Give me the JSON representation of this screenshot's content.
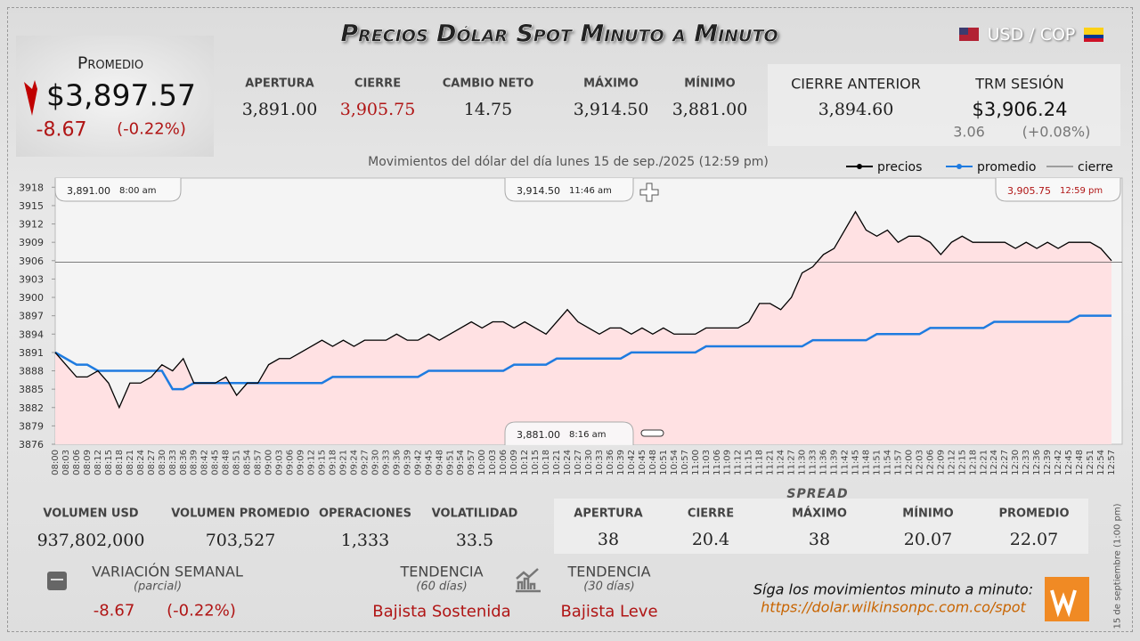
{
  "header": {
    "title": "Precios Dólar Spot Minuto a Minuto",
    "pair": "USD / COP"
  },
  "promedio": {
    "label": "Promedio",
    "value": "$3,897.57",
    "change": "-8.67",
    "pct": "(-0.22%)"
  },
  "stats": [
    {
      "label": "APERTURA",
      "value": "3,891.00"
    },
    {
      "label": "CIERRE",
      "value": "3,905.75"
    },
    {
      "label": "CAMBIO NETO",
      "value": "14.75"
    },
    {
      "label": "MÁXIMO",
      "value": "3,914.50"
    },
    {
      "label": "MÍNIMO",
      "value": "3,881.00"
    },
    {
      "label": "CIERRE ANTERIOR",
      "value": "3,894.60"
    },
    {
      "label": "TRM SESIÓN",
      "value": "$3,906.24",
      "change": "3.06",
      "pct": "(+0.08%)"
    }
  ],
  "chart_data": {
    "type": "line",
    "subtitle": "Movimientos del dólar del día lunes 15 de sep./2025 (12:59 pm)",
    "categories": [
      "08:00",
      "08:03",
      "08:06",
      "08:09",
      "08:12",
      "08:15",
      "08:18",
      "08:21",
      "08:24",
      "08:27",
      "08:30",
      "08:33",
      "08:36",
      "08:39",
      "08:42",
      "08:45",
      "08:48",
      "08:51",
      "08:54",
      "08:57",
      "09:00",
      "09:03",
      "09:06",
      "09:09",
      "09:12",
      "09:15",
      "09:18",
      "09:21",
      "09:24",
      "09:27",
      "09:30",
      "09:33",
      "09:36",
      "09:39",
      "09:42",
      "09:45",
      "09:48",
      "09:51",
      "09:54",
      "09:57",
      "10:00",
      "10:03",
      "10:06",
      "10:09",
      "10:12",
      "10:15",
      "10:18",
      "10:21",
      "10:24",
      "10:27",
      "10:30",
      "10:33",
      "10:36",
      "10:39",
      "10:42",
      "10:45",
      "10:48",
      "10:51",
      "10:54",
      "10:57",
      "11:00",
      "11:03",
      "11:06",
      "11:09",
      "11:12",
      "11:15",
      "11:18",
      "11:21",
      "11:24",
      "11:27",
      "11:30",
      "11:33",
      "11:36",
      "11:39",
      "11:42",
      "11:45",
      "11:48",
      "11:51",
      "11:54",
      "11:57",
      "12:00",
      "12:03",
      "12:06",
      "12:09",
      "12:12",
      "12:15",
      "12:18",
      "12:21",
      "12:24",
      "12:27",
      "12:30",
      "12:33",
      "12:36",
      "12:39",
      "12:42",
      "12:45",
      "12:48",
      "12:51",
      "12:54",
      "12:57"
    ],
    "series": [
      {
        "name": "precios",
        "color": "#000000",
        "values": [
          3891,
          3889,
          3887,
          3887,
          3888,
          3886,
          3882,
          3886,
          3886,
          3887,
          3889,
          3888,
          3890,
          3886,
          3886,
          3886,
          3887,
          3884,
          3886,
          3886,
          3889,
          3890,
          3890,
          3891,
          3892,
          3893,
          3892,
          3893,
          3892,
          3893,
          3893,
          3893,
          3894,
          3893,
          3893,
          3894,
          3893,
          3894,
          3895,
          3896,
          3895,
          3896,
          3896,
          3895,
          3896,
          3895,
          3894,
          3896,
          3898,
          3896,
          3895,
          3894,
          3895,
          3895,
          3894,
          3895,
          3894,
          3895,
          3894,
          3894,
          3894,
          3895,
          3895,
          3895,
          3895,
          3896,
          3899,
          3899,
          3898,
          3900,
          3904,
          3905,
          3907,
          3908,
          3911,
          3914,
          3911,
          3910,
          3911,
          3909,
          3910,
          3910,
          3909,
          3907,
          3909,
          3910,
          3909,
          3909,
          3909,
          3909,
          3908,
          3909,
          3908,
          3909,
          3908,
          3909,
          3909,
          3909,
          3908,
          3906
        ]
      },
      {
        "name": "promedio",
        "color": "#1e7be0",
        "values": [
          3891,
          3890,
          3889,
          3889,
          3888,
          3888,
          3888,
          3888,
          3888,
          3888,
          3888,
          3885,
          3885,
          3886,
          3886,
          3886,
          3886,
          3886,
          3886,
          3886,
          3886,
          3886,
          3886,
          3886,
          3886,
          3886,
          3887,
          3887,
          3887,
          3887,
          3887,
          3887,
          3887,
          3887,
          3887,
          3888,
          3888,
          3888,
          3888,
          3888,
          3888,
          3888,
          3888,
          3889,
          3889,
          3889,
          3889,
          3890,
          3890,
          3890,
          3890,
          3890,
          3890,
          3890,
          3891,
          3891,
          3891,
          3891,
          3891,
          3891,
          3891,
          3892,
          3892,
          3892,
          3892,
          3892,
          3892,
          3892,
          3892,
          3892,
          3892,
          3893,
          3893,
          3893,
          3893,
          3893,
          3893,
          3894,
          3894,
          3894,
          3894,
          3894,
          3895,
          3895,
          3895,
          3895,
          3895,
          3895,
          3896,
          3896,
          3896,
          3896,
          3896,
          3896,
          3896,
          3896,
          3897,
          3897,
          3897,
          3897
        ]
      },
      {
        "name": "cierre",
        "color": "#555555",
        "value": 3905.75
      }
    ],
    "annotations": [
      {
        "price": "3,891.00",
        "time": "8:00 am"
      },
      {
        "price": "3,914.50",
        "time": "11:46 am"
      },
      {
        "price": "3,905.75",
        "time": "12:59 pm"
      },
      {
        "price": "3,881.00",
        "time": "8:16 am"
      }
    ],
    "ylim": [
      3876,
      3919.5
    ],
    "yticks": [
      3876,
      3879,
      3882,
      3885,
      3888,
      3891,
      3894,
      3897,
      3900,
      3903,
      3906,
      3909,
      3912,
      3915,
      3918
    ],
    "fill": "#ffe1e3"
  },
  "bottom_stats": [
    {
      "label": "VOLUMEN USD",
      "value": "937,802,000"
    },
    {
      "label": "VOLUMEN PROMEDIO",
      "value": "703,527"
    },
    {
      "label": "OPERACIONES",
      "value": "1,333"
    },
    {
      "label": "VOLATILIDAD",
      "value": "33.5"
    }
  ],
  "spread": {
    "title": "SPREAD",
    "items": [
      {
        "label": "APERTURA",
        "value": "38"
      },
      {
        "label": "CIERRE",
        "value": "20.4"
      },
      {
        "label": "MÁXIMO",
        "value": "38"
      },
      {
        "label": "MÍNIMO",
        "value": "20.07"
      },
      {
        "label": "PROMEDIO",
        "value": "22.07"
      }
    ]
  },
  "weekly": {
    "label": "VARIACIÓN SEMANAL",
    "sub": "(parcial)",
    "change": "-8.67",
    "pct": "(-0.22%)"
  },
  "trends": [
    {
      "label": "TENDENCIA",
      "sub": "(60 días)",
      "value": "Bajista Sostenida"
    },
    {
      "label": "TENDENCIA",
      "sub": "(30 días)",
      "value": "Bajista Leve"
    }
  ],
  "footer": {
    "text": "Síga los movimientos minuto a minuto:",
    "link": "https://dolar.wilkinsonpc.com.co/spot",
    "side": "15 de septiembre (1:00 pm)"
  }
}
